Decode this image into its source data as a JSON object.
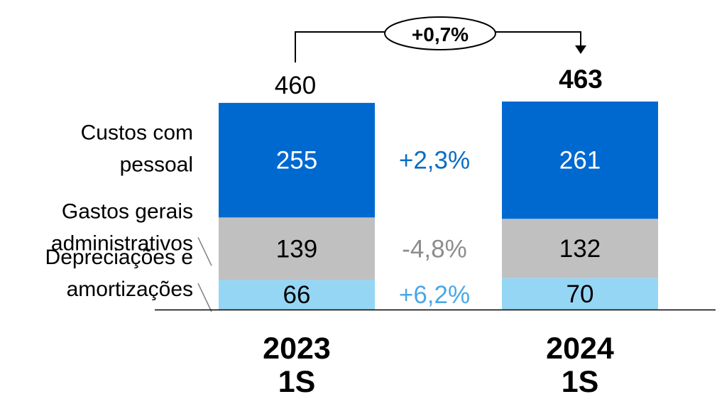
{
  "chart_data": {
    "type": "bar",
    "stacked": true,
    "categories": [
      {
        "year": "2023",
        "period": "1S"
      },
      {
        "year": "2024",
        "period": "1S"
      }
    ],
    "totals": [
      "460",
      "463"
    ],
    "series": [
      {
        "name": "Depreciações e amortizações",
        "name_lines": [
          "Depreciações e",
          "amortizações"
        ],
        "values": [
          66,
          70
        ],
        "color": "#96d6f5",
        "text_color": "#000000",
        "change": "+6,2%",
        "change_color": "#4aa8e8"
      },
      {
        "name": "Gastos gerais administrativos",
        "name_lines": [
          "Gastos gerais",
          "administrativos"
        ],
        "values": [
          139,
          132
        ],
        "color": "#c0c0c0",
        "text_color": "#000000",
        "change": "-4,8%",
        "change_color": "#8c8c8c"
      },
      {
        "name": "Custos com pessoal",
        "name_lines": [
          "Custos com",
          "pessoal"
        ],
        "values": [
          255,
          261
        ],
        "color": "#0069d0",
        "text_color": "#ffffff",
        "change": "+2,3%",
        "change_color": "#0a6cc4"
      }
    ],
    "total_change": "+0,7%",
    "ylim": [
      0,
      463
    ],
    "grid": false,
    "legend": "left"
  }
}
